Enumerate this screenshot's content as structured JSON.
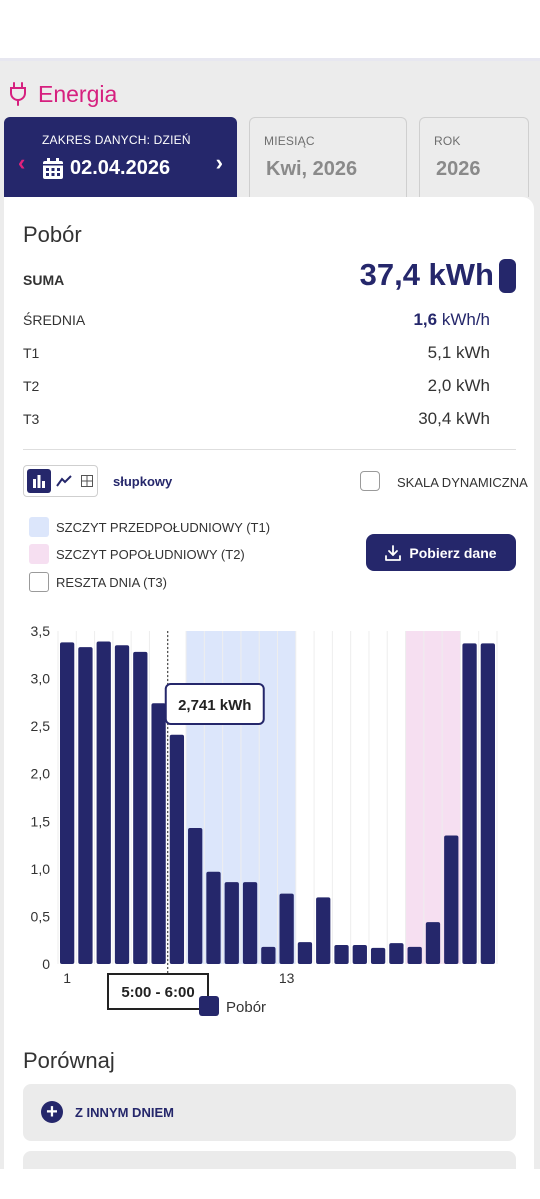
{
  "header": {
    "title": "Energia"
  },
  "tabs": {
    "day": {
      "caption": "ZAKRES DANYCH: DZIEŃ",
      "value": "02.04.2026"
    },
    "month": {
      "caption": "MIESIĄC",
      "value": "Kwi, 2026"
    },
    "year": {
      "caption": "ROK",
      "value": "2026"
    }
  },
  "consumption": {
    "title": "Pobór",
    "sum": {
      "label": "SUMA",
      "value": "37,4 kWh"
    },
    "average": {
      "label": "ŚREDNIA",
      "value": "1,6",
      "unit": "kWh/h"
    },
    "t1": {
      "label": "T1",
      "value": "5,1 kWh"
    },
    "t2": {
      "label": "T2",
      "value": "2,0 kWh"
    },
    "t3": {
      "label": "T3",
      "value": "30,4 kWh"
    }
  },
  "controls": {
    "chart_type_label": "słupkowy",
    "dynamic_scale_label": "SKALA DYNAMICZNA",
    "dynamic_scale_checked": false,
    "download_label": "Pobierz dane"
  },
  "legend": {
    "t1": {
      "label": "SZCZYT PRZEDPOŁUDNIOWY (T1)",
      "color": "#dce6fb"
    },
    "t2": {
      "label": "SZCZYT POPOŁUDNIOWY (T2)",
      "color": "#f6dff1"
    },
    "t3": {
      "label": "RESZTA DNIA (T3)",
      "color": "#ffffff"
    }
  },
  "chart_data": {
    "type": "bar",
    "categories": [
      "1",
      "2",
      "3",
      "4",
      "5",
      "6",
      "7",
      "8",
      "9",
      "10",
      "11",
      "12",
      "13",
      "14",
      "15",
      "16",
      "17",
      "18",
      "19",
      "20",
      "21",
      "22",
      "23",
      "24"
    ],
    "x_tick_labels": [
      "1",
      "13"
    ],
    "series": [
      {
        "name": "Pobór",
        "color": "#25276b",
        "values": [
          3.38,
          3.33,
          3.39,
          3.35,
          3.28,
          2.741,
          2.41,
          1.43,
          0.97,
          0.86,
          0.86,
          0.18,
          0.74,
          0.23,
          0.7,
          0.2,
          0.2,
          0.17,
          0.22,
          0.18,
          0.44,
          1.35,
          3.37,
          3.37
        ]
      }
    ],
    "y_ticks": [
      "0",
      "0,5",
      "1,0",
      "1,5",
      "2,0",
      "2,5",
      "3,0",
      "3,5"
    ],
    "ylim": [
      0,
      3.5
    ],
    "bands": [
      {
        "name": "T1",
        "from_hour": 7,
        "to_hour": 13,
        "color": "#dce6fb"
      },
      {
        "name": "T2",
        "from_hour": 19,
        "to_hour": 22,
        "color": "#f6dff1"
      }
    ],
    "tooltip": {
      "hour_index": 6,
      "value_label": "2,741 kWh",
      "time_label": "5:00 - 6:00"
    },
    "legend_label": "Pobór",
    "grid": true
  },
  "compare": {
    "title": "Porównaj",
    "other_day_label": "Z INNYM DNIEM"
  }
}
